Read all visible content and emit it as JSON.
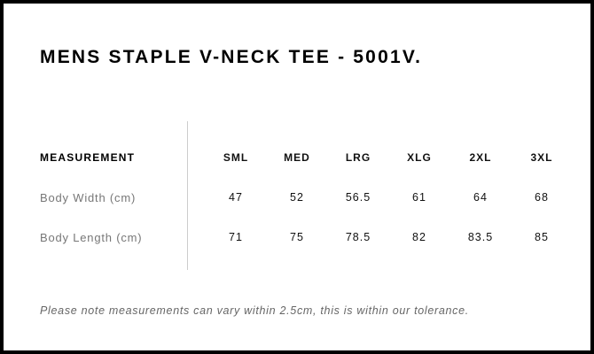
{
  "title": "MENS STAPLE V-NECK TEE - 5001V.",
  "table": {
    "header": "MEASUREMENT",
    "sizes": [
      "SML",
      "MED",
      "LRG",
      "XLG",
      "2XL",
      "3XL"
    ],
    "rows": [
      {
        "label": "Body Width (cm)",
        "values": [
          "47",
          "52",
          "56.5",
          "61",
          "64",
          "68"
        ]
      },
      {
        "label": "Body Length (cm)",
        "values": [
          "71",
          "75",
          "78.5",
          "82",
          "83.5",
          "85"
        ]
      }
    ]
  },
  "note": "Please note measurements can vary within 2.5cm, this is within our tolerance."
}
